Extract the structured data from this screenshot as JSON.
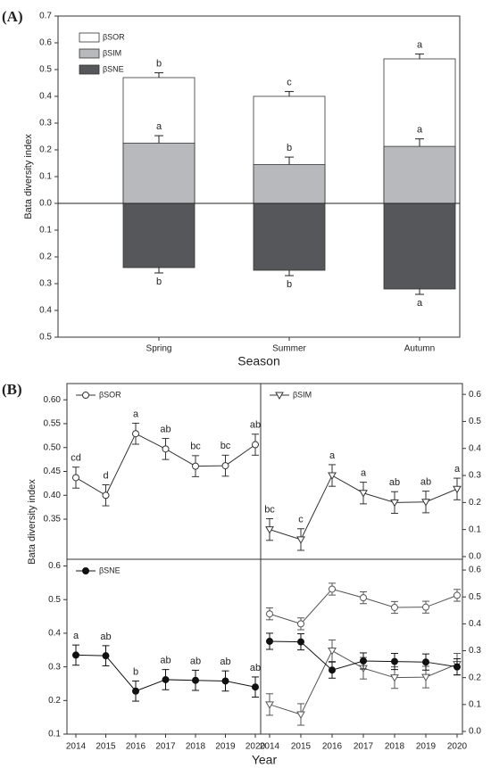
{
  "panel_labels": [
    "(A)",
    "(B)"
  ],
  "panel_b": {
    "xlabel": "Year",
    "ylabel": "Bata diversity index"
  },
  "chart_data": [
    {
      "type": "bar",
      "xlabel": "Season",
      "ylabel": "Bata diversity index",
      "categories": [
        "Spring",
        "Summer",
        "Autumn"
      ],
      "ylim": [
        -0.5,
        0.7
      ],
      "yticks": [
        {
          "value": -0.5,
          "label": "0.5"
        },
        {
          "value": -0.4,
          "label": "0.4"
        },
        {
          "value": -0.3,
          "label": "0.3"
        },
        {
          "value": -0.2,
          "label": "0.2"
        },
        {
          "value": -0.1,
          "label": "0.1"
        },
        {
          "value": 0,
          "label": "0.0"
        },
        0.1,
        0.2,
        0.3,
        0.4,
        0.5,
        0.6,
        0.7
      ],
      "series": [
        {
          "name": "βSOR",
          "color": "#ffffff",
          "values": [
            0.47,
            0.4,
            0.54
          ],
          "errors": [
            0.018,
            0.018,
            0.018
          ],
          "letters": [
            "b",
            "c",
            "a"
          ]
        },
        {
          "name": "βSIM",
          "color": "#b8b9bc",
          "values": [
            0.225,
            0.145,
            0.213
          ],
          "errors": [
            0.028,
            0.028,
            0.028
          ],
          "letters": [
            "a",
            "b",
            "a"
          ]
        },
        {
          "name": "βSNE",
          "color": "#55575a",
          "values": [
            -0.24,
            -0.25,
            -0.32
          ],
          "errors": [
            0.02,
            0.02,
            0.02
          ],
          "letters": [
            "b",
            "b",
            "a"
          ]
        }
      ]
    },
    {
      "type": "line",
      "axis_side": "left",
      "ylim": [
        0.266,
        0.634
      ],
      "yticks": [
        0.35,
        {
          "value": 0.4,
          "label": "0.40"
        },
        0.45,
        {
          "value": 0.5,
          "label": "0.50"
        },
        0.55,
        {
          "value": 0.6,
          "label": "0.60"
        }
      ],
      "series": [
        {
          "name": "βSOR",
          "color": "#333333",
          "marker": "circle-open",
          "values": [
            0.437,
            0.4,
            0.529,
            0.497,
            0.461,
            0.462,
            0.506
          ],
          "errors": [
            0.022,
            0.022,
            0.022,
            0.022,
            0.022,
            0.022,
            0.022
          ],
          "letters": [
            "cd",
            "d",
            "a",
            "ab",
            "bc",
            "bc",
            "ab"
          ]
        }
      ]
    },
    {
      "type": "line",
      "axis_side": "right",
      "ylim": [
        -0.01,
        0.64
      ],
      "yticks": [
        {
          "value": 0,
          "label": "0.0"
        },
        0.1,
        0.2,
        0.3,
        0.4,
        0.5,
        0.6
      ],
      "series": [
        {
          "name": "βSIM",
          "color": "#333333",
          "marker": "triangle-open",
          "values": [
            0.1,
            0.063,
            0.3,
            0.235,
            0.2,
            0.202,
            0.25
          ],
          "errors": [
            0.04,
            0.04,
            0.04,
            0.04,
            0.04,
            0.04,
            0.04
          ],
          "letters": [
            "bc",
            "c",
            "a",
            "a",
            "ab",
            "ab",
            "a"
          ]
        }
      ]
    },
    {
      "type": "line",
      "axis_side": "left",
      "ylim": [
        0.1,
        0.62
      ],
      "categories": [
        "2014",
        "2015",
        "2016",
        "2017",
        "2018",
        "2019",
        "2020"
      ],
      "yticks": [
        0.1,
        0.2,
        0.3,
        0.4,
        0.5,
        0.6
      ],
      "series": [
        {
          "name": "βSNE",
          "color": "#111111",
          "marker": "circle-filled",
          "values": [
            0.335,
            0.333,
            0.228,
            0.262,
            0.26,
            0.258,
            0.24
          ],
          "errors": [
            0.03,
            0.03,
            0.03,
            0.03,
            0.03,
            0.03,
            0.03
          ],
          "letters": [
            "a",
            "ab",
            "b",
            "ab",
            "ab",
            "ab",
            "ab"
          ]
        }
      ]
    },
    {
      "type": "line",
      "axis_side": "right",
      "ylim": [
        -0.01,
        0.64
      ],
      "categories": [
        "2014",
        "2015",
        "2016",
        "2017",
        "2018",
        "2019",
        "2020"
      ],
      "yticks": [
        {
          "value": 0,
          "label": "0.0"
        },
        0.1,
        0.2,
        0.3,
        0.4,
        0.5,
        0.6
      ],
      "series": [
        {
          "color": "#555555",
          "marker": "circle-open",
          "values": [
            0.437,
            0.4,
            0.529,
            0.497,
            0.461,
            0.462,
            0.506
          ],
          "errors": [
            0.022,
            0.022,
            0.022,
            0.022,
            0.022,
            0.022,
            0.022
          ]
        },
        {
          "color": "#555555",
          "marker": "triangle-open",
          "values": [
            0.1,
            0.063,
            0.3,
            0.235,
            0.2,
            0.202,
            0.25
          ],
          "errors": [
            0.04,
            0.04,
            0.04,
            0.04,
            0.04,
            0.04,
            0.04
          ]
        },
        {
          "color": "#111111",
          "marker": "circle-filled",
          "values": [
            0.335,
            0.333,
            0.228,
            0.262,
            0.26,
            0.258,
            0.24
          ],
          "errors": [
            0.03,
            0.03,
            0.03,
            0.03,
            0.03,
            0.03,
            0.03
          ]
        }
      ]
    }
  ]
}
